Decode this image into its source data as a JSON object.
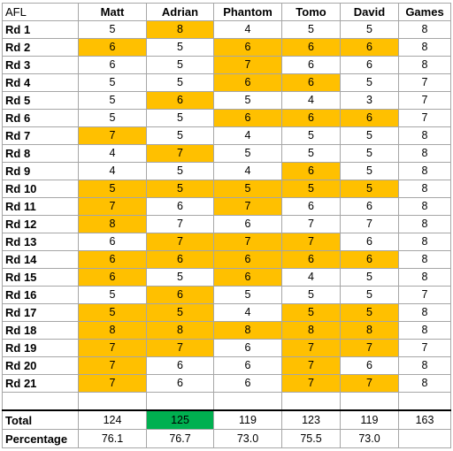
{
  "columns": [
    "AFL",
    "Matt",
    "Adrian",
    "Phantom",
    "Tomo",
    "David",
    "Games"
  ],
  "highlight_color": "#ffc000",
  "best_total_color": "#00b050",
  "rows": [
    {
      "label": "Rd 1",
      "values": [
        "5",
        "8",
        "4",
        "5",
        "5",
        "8"
      ],
      "highlight": [
        false,
        true,
        false,
        false,
        false,
        false
      ]
    },
    {
      "label": "Rd 2",
      "values": [
        "6",
        "5",
        "6",
        "6",
        "6",
        "8"
      ],
      "highlight": [
        true,
        false,
        true,
        true,
        true,
        false
      ]
    },
    {
      "label": "Rd 3",
      "values": [
        "6",
        "5",
        "7",
        "6",
        "6",
        "8"
      ],
      "highlight": [
        false,
        false,
        true,
        false,
        false,
        false
      ]
    },
    {
      "label": "Rd 4",
      "values": [
        "5",
        "5",
        "6",
        "6",
        "5",
        "7"
      ],
      "highlight": [
        false,
        false,
        true,
        true,
        false,
        false
      ]
    },
    {
      "label": "Rd 5",
      "values": [
        "5",
        "6",
        "5",
        "4",
        "3",
        "7"
      ],
      "highlight": [
        false,
        true,
        false,
        false,
        false,
        false
      ]
    },
    {
      "label": "Rd 6",
      "values": [
        "5",
        "5",
        "6",
        "6",
        "6",
        "7"
      ],
      "highlight": [
        false,
        false,
        true,
        true,
        true,
        false
      ]
    },
    {
      "label": "Rd 7",
      "values": [
        "7",
        "5",
        "4",
        "5",
        "5",
        "8"
      ],
      "highlight": [
        true,
        false,
        false,
        false,
        false,
        false
      ]
    },
    {
      "label": "Rd 8",
      "values": [
        "4",
        "7",
        "5",
        "5",
        "5",
        "8"
      ],
      "highlight": [
        false,
        true,
        false,
        false,
        false,
        false
      ]
    },
    {
      "label": "Rd 9",
      "values": [
        "4",
        "5",
        "4",
        "6",
        "5",
        "8"
      ],
      "highlight": [
        false,
        false,
        false,
        true,
        false,
        false
      ]
    },
    {
      "label": "Rd 10",
      "values": [
        "5",
        "5",
        "5",
        "5",
        "5",
        "8"
      ],
      "highlight": [
        true,
        true,
        true,
        true,
        true,
        false
      ]
    },
    {
      "label": "Rd 11",
      "values": [
        "7",
        "6",
        "7",
        "6",
        "6",
        "8"
      ],
      "highlight": [
        true,
        false,
        true,
        false,
        false,
        false
      ]
    },
    {
      "label": "Rd 12",
      "values": [
        "8",
        "7",
        "6",
        "7",
        "7",
        "8"
      ],
      "highlight": [
        true,
        false,
        false,
        false,
        false,
        false
      ]
    },
    {
      "label": "Rd 13",
      "values": [
        "6",
        "7",
        "7",
        "7",
        "6",
        "8"
      ],
      "highlight": [
        false,
        true,
        true,
        true,
        false,
        false
      ]
    },
    {
      "label": "Rd 14",
      "values": [
        "6",
        "6",
        "6",
        "6",
        "6",
        "8"
      ],
      "highlight": [
        true,
        true,
        true,
        true,
        true,
        false
      ]
    },
    {
      "label": "Rd 15",
      "values": [
        "6",
        "5",
        "6",
        "4",
        "5",
        "8"
      ],
      "highlight": [
        true,
        false,
        true,
        false,
        false,
        false
      ]
    },
    {
      "label": "Rd 16",
      "values": [
        "5",
        "6",
        "5",
        "5",
        "5",
        "7"
      ],
      "highlight": [
        false,
        true,
        false,
        false,
        false,
        false
      ]
    },
    {
      "label": "Rd 17",
      "values": [
        "5",
        "5",
        "4",
        "5",
        "5",
        "8"
      ],
      "highlight": [
        true,
        true,
        false,
        true,
        true,
        false
      ]
    },
    {
      "label": "Rd 18",
      "values": [
        "8",
        "8",
        "8",
        "8",
        "8",
        "8"
      ],
      "highlight": [
        true,
        true,
        true,
        true,
        true,
        false
      ]
    },
    {
      "label": "Rd 19",
      "values": [
        "7",
        "7",
        "6",
        "7",
        "7",
        "7"
      ],
      "highlight": [
        true,
        true,
        false,
        true,
        true,
        false
      ]
    },
    {
      "label": "Rd 20",
      "values": [
        "7",
        "6",
        "6",
        "7",
        "6",
        "8"
      ],
      "highlight": [
        true,
        false,
        false,
        true,
        false,
        false
      ]
    },
    {
      "label": "Rd 21",
      "values": [
        "7",
        "6",
        "6",
        "7",
        "7",
        "8"
      ],
      "highlight": [
        true,
        false,
        false,
        true,
        true,
        false
      ]
    }
  ],
  "total": {
    "label": "Total",
    "values": [
      "124",
      "125",
      "119",
      "123",
      "119",
      "163"
    ],
    "best_index": 1
  },
  "percentage": {
    "label": "Percentage",
    "values": [
      "76.1",
      "76.7",
      "73.0",
      "75.5",
      "73.0",
      ""
    ]
  }
}
